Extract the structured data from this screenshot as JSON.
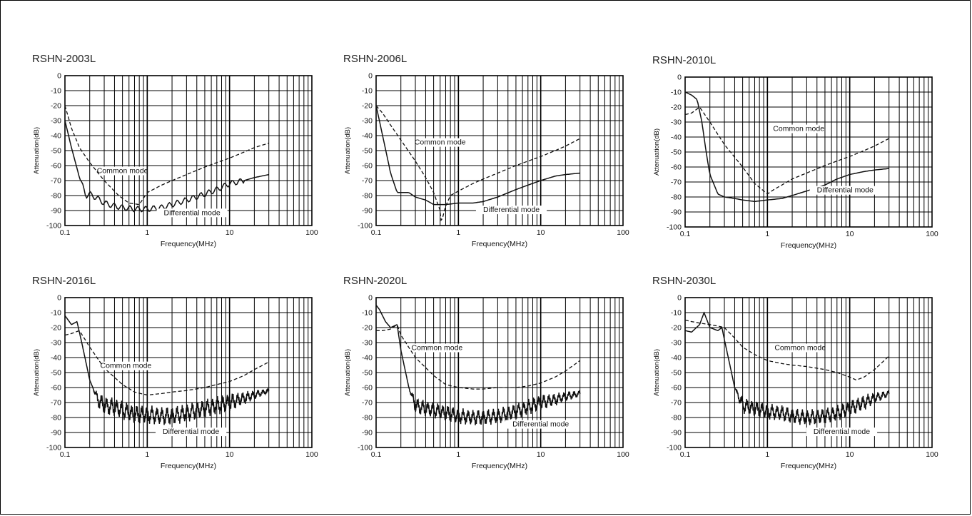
{
  "chart_data": [
    {
      "type": "line",
      "title": "RSHN-2003L",
      "xlabel": "Frequency(MHz)",
      "ylabel": "Attenuation(dB)",
      "xscale": "log",
      "xlim": [
        0.1,
        100
      ],
      "ylim": [
        -100,
        0
      ],
      "xtick_labels": [
        "0.1",
        "1",
        "10",
        "100"
      ],
      "ytick_labels": [
        "0",
        "-10",
        "-20",
        "-30",
        "-40",
        "-50",
        "-60",
        "-70",
        "-80",
        "-90",
        "-100"
      ],
      "grid": true,
      "noise": 0.03,
      "series": [
        {
          "name": "Common mode",
          "style": "dashed",
          "x": [
            0.1,
            0.12,
            0.15,
            0.2,
            0.3,
            0.45,
            0.6,
            0.8,
            1,
            1.5,
            2,
            3,
            5,
            7,
            10,
            15,
            20,
            30
          ],
          "y": [
            -20,
            -35,
            -48,
            -58,
            -70,
            -80,
            -85,
            -86,
            -78,
            -73,
            -70,
            -66,
            -61,
            -58,
            -55,
            -51,
            -48,
            -45
          ]
        },
        {
          "name": "Differential mode",
          "style": "solid",
          "x": [
            0.1,
            0.12,
            0.15,
            0.18,
            0.2,
            0.25,
            0.3,
            0.4,
            0.5,
            0.7,
            1,
            1.5,
            2,
            3,
            5,
            7,
            10,
            15,
            20,
            30
          ],
          "y": [
            -30,
            -48,
            -68,
            -80,
            -79,
            -82,
            -85,
            -87,
            -88,
            -89,
            -89,
            -88,
            -86,
            -83,
            -79,
            -76,
            -72,
            -70,
            -68,
            -66
          ]
        }
      ],
      "annotations": [
        {
          "text": "Common mode",
          "x": 0.5,
          "y": -65
        },
        {
          "text": "Differential mode",
          "x": 3.5,
          "y": -93
        }
      ]
    },
    {
      "type": "line",
      "title": "RSHN-2006L",
      "xlabel": "Frequency(MHz)",
      "ylabel": "Attenuation(dB)",
      "xscale": "log",
      "xlim": [
        0.1,
        100
      ],
      "ylim": [
        -100,
        0
      ],
      "xtick_labels": [
        "0.1",
        "1",
        "10",
        "100"
      ],
      "ytick_labels": [
        "0",
        "-10",
        "-20",
        "-30",
        "-40",
        "-50",
        "-60",
        "-70",
        "-80",
        "-90",
        "-100"
      ],
      "grid": true,
      "noise": 0.02,
      "series": [
        {
          "name": "Common mode",
          "style": "dashed",
          "x": [
            0.1,
            0.12,
            0.15,
            0.2,
            0.3,
            0.4,
            0.5,
            0.6,
            0.62,
            0.7,
            0.8,
            1,
            1.5,
            2,
            3,
            5,
            7,
            10,
            15,
            20,
            30
          ],
          "y": [
            -20,
            -25,
            -33,
            -43,
            -57,
            -68,
            -78,
            -90,
            -98,
            -87,
            -80,
            -77,
            -72,
            -69,
            -65,
            -60,
            -57,
            -54,
            -50,
            -47,
            -42
          ]
        },
        {
          "name": "Differential mode",
          "style": "solid",
          "x": [
            0.1,
            0.12,
            0.15,
            0.18,
            0.2,
            0.25,
            0.3,
            0.4,
            0.5,
            0.7,
            1,
            1.5,
            2,
            3,
            5,
            7,
            10,
            15,
            20,
            30
          ],
          "y": [
            -20,
            -40,
            -65,
            -78,
            -78,
            -78,
            -81,
            -83,
            -86,
            -86,
            -85,
            -85,
            -84,
            -81,
            -76,
            -73,
            -70,
            -67,
            -66,
            -65
          ]
        }
      ],
      "annotations": [
        {
          "text": "Common mode",
          "x": 0.6,
          "y": -46
        },
        {
          "text": "Differential mode",
          "x": 4.4,
          "y": -91
        }
      ]
    },
    {
      "type": "line",
      "title": "RSHN-2010L",
      "xlabel": "Frequency(MHz)",
      "ylabel": "Attenuation(dB)",
      "xscale": "log",
      "xlim": [
        0.1,
        100
      ],
      "ylim": [
        -100,
        0
      ],
      "xtick_labels": [
        "0.1",
        "1",
        "10",
        "100"
      ],
      "ytick_labels": [
        "0",
        "-10",
        "-20",
        "-30",
        "-40",
        "-50",
        "-60",
        "-70",
        "-80",
        "-90",
        "-100"
      ],
      "grid": true,
      "noise": 0.02,
      "series": [
        {
          "name": "Common mode",
          "style": "dashed",
          "x": [
            0.1,
            0.12,
            0.15,
            0.2,
            0.3,
            0.5,
            0.7,
            1,
            1.2,
            1.5,
            2,
            3,
            5,
            7,
            10,
            15,
            20,
            30
          ],
          "y": [
            -25,
            -24,
            -20,
            -30,
            -45,
            -60,
            -71,
            -78,
            -75,
            -72,
            -68,
            -64,
            -59,
            -56,
            -53,
            -49,
            -46,
            -41
          ]
        },
        {
          "name": "Differential mode",
          "style": "solid",
          "x": [
            0.1,
            0.12,
            0.14,
            0.16,
            0.18,
            0.2,
            0.25,
            0.3,
            0.4,
            0.5,
            0.7,
            1,
            1.5,
            2,
            3,
            5,
            7,
            10,
            15,
            20,
            30
          ],
          "y": [
            -10,
            -12,
            -15,
            -30,
            -50,
            -65,
            -78,
            -80,
            -81,
            -82,
            -83,
            -82,
            -81,
            -79,
            -76,
            -72,
            -68,
            -65,
            -63,
            -62,
            -61
          ]
        }
      ],
      "annotations": [
        {
          "text": "Common mode",
          "x": 2.4,
          "y": -36
        },
        {
          "text": "Differential mode",
          "x": 8.8,
          "y": -77
        }
      ]
    },
    {
      "type": "line",
      "title": "RSHN-2016L",
      "xlabel": "Frequency(MHz)",
      "ylabel": "Attenuation(dB)",
      "xscale": "log",
      "xlim": [
        0.1,
        100
      ],
      "ylim": [
        -100,
        0
      ],
      "xtick_labels": [
        "0.1",
        "1",
        "10",
        "100"
      ],
      "ytick_labels": [
        "0",
        "-10",
        "-20",
        "-30",
        "-40",
        "-50",
        "-60",
        "-70",
        "-80",
        "-90",
        "-100"
      ],
      "grid": true,
      "noise": 0.14,
      "series": [
        {
          "name": "Common mode",
          "style": "dashed",
          "x": [
            0.1,
            0.12,
            0.15,
            0.2,
            0.3,
            0.5,
            0.7,
            1,
            1.5,
            2,
            3,
            5,
            7,
            10,
            15,
            20,
            30
          ],
          "y": [
            -25,
            -24,
            -22,
            -33,
            -47,
            -58,
            -63,
            -65,
            -64,
            -63,
            -62,
            -60,
            -58,
            -56,
            -52,
            -48,
            -43
          ]
        },
        {
          "name": "Differential mode",
          "style": "solid",
          "x": [
            0.1,
            0.12,
            0.14,
            0.16,
            0.2,
            0.25,
            0.3,
            0.4,
            0.5,
            0.7,
            1,
            1.5,
            2,
            3,
            5,
            7,
            10,
            15,
            20,
            30
          ],
          "y": [
            -12,
            -18,
            -16,
            -30,
            -55,
            -68,
            -72,
            -73,
            -75,
            -78,
            -78,
            -79,
            -79,
            -77,
            -74,
            -72,
            -70,
            -67,
            -65,
            -62
          ]
        }
      ],
      "annotations": [
        {
          "text": "Common mode",
          "x": 0.55,
          "y": -47
        },
        {
          "text": "Differential mode",
          "x": 3.4,
          "y": -91
        }
      ]
    },
    {
      "type": "line",
      "title": "RSHN-2020L",
      "xlabel": "Frequency(MHz)",
      "ylabel": "Attenuation(dB)",
      "xscale": "log",
      "xlim": [
        0.1,
        100
      ],
      "ylim": [
        -100,
        0
      ],
      "xtick_labels": [
        "0.1",
        "1",
        "10",
        "100"
      ],
      "ytick_labels": [
        "0",
        "-10",
        "-20",
        "-30",
        "-40",
        "-50",
        "-60",
        "-70",
        "-80",
        "-90",
        "-100"
      ],
      "grid": true,
      "noise": 0.12,
      "series": [
        {
          "name": "Common mode",
          "style": "dashed",
          "x": [
            0.1,
            0.12,
            0.15,
            0.18,
            0.2,
            0.3,
            0.5,
            0.7,
            1,
            1.5,
            2,
            3,
            5,
            7,
            10,
            15,
            20,
            30
          ],
          "y": [
            -22,
            -22,
            -21,
            -18,
            -25,
            -40,
            -52,
            -58,
            -60,
            -61,
            -61,
            -60,
            -60,
            -59,
            -57,
            -53,
            -49,
            -42
          ]
        },
        {
          "name": "Differential mode",
          "style": "solid",
          "x": [
            0.1,
            0.11,
            0.13,
            0.15,
            0.18,
            0.2,
            0.25,
            0.3,
            0.4,
            0.5,
            0.7,
            1,
            1.5,
            2,
            3,
            5,
            7,
            10,
            15,
            20,
            30
          ],
          "y": [
            -5,
            -8,
            -16,
            -20,
            -18,
            -35,
            -60,
            -72,
            -74,
            -75,
            -77,
            -79,
            -80,
            -80,
            -79,
            -76,
            -73,
            -70,
            -68,
            -66,
            -64
          ]
        }
      ],
      "annotations": [
        {
          "text": "Common mode",
          "x": 0.55,
          "y": -35
        },
        {
          "text": "Differential mode",
          "x": 10,
          "y": -86
        }
      ]
    },
    {
      "type": "line",
      "title": "RSHN-2030L",
      "xlabel": "Frequency(MHz)",
      "ylabel": "Attenuation(dB)",
      "xscale": "log",
      "xlim": [
        0.1,
        100
      ],
      "ylim": [
        -100,
        0
      ],
      "xtick_labels": [
        "0.1",
        "1",
        "10",
        "100"
      ],
      "ytick_labels": [
        "0",
        "-10",
        "-20",
        "-30",
        "-40",
        "-50",
        "-60",
        "-70",
        "-80",
        "-90",
        "-100"
      ],
      "grid": true,
      "noise": 0.12,
      "series": [
        {
          "name": "Common mode",
          "style": "dashed",
          "x": [
            0.1,
            0.12,
            0.15,
            0.2,
            0.25,
            0.3,
            0.4,
            0.5,
            0.7,
            1,
            1.5,
            2,
            3,
            5,
            7,
            10,
            12,
            15,
            20,
            30
          ],
          "y": [
            -15,
            -16,
            -17,
            -18,
            -19,
            -20,
            -27,
            -33,
            -38,
            -42,
            -44,
            -45,
            -46,
            -48,
            -50,
            -53,
            -55,
            -53,
            -48,
            -39
          ]
        },
        {
          "name": "Differential mode",
          "style": "solid",
          "x": [
            0.1,
            0.12,
            0.15,
            0.17,
            0.2,
            0.25,
            0.28,
            0.3,
            0.35,
            0.4,
            0.5,
            0.7,
            1,
            1.5,
            2,
            3,
            5,
            7,
            10,
            15,
            20,
            30
          ],
          "y": [
            -22,
            -23,
            -18,
            -10,
            -20,
            -22,
            -20,
            -28,
            -45,
            -60,
            -72,
            -74,
            -76,
            -77,
            -79,
            -80,
            -79,
            -77,
            -74,
            -70,
            -67,
            -64
          ]
        }
      ],
      "annotations": [
        {
          "text": "Common mode",
          "x": 2.5,
          "y": -35
        },
        {
          "text": "Differential mode",
          "x": 8,
          "y": -91
        }
      ]
    }
  ]
}
